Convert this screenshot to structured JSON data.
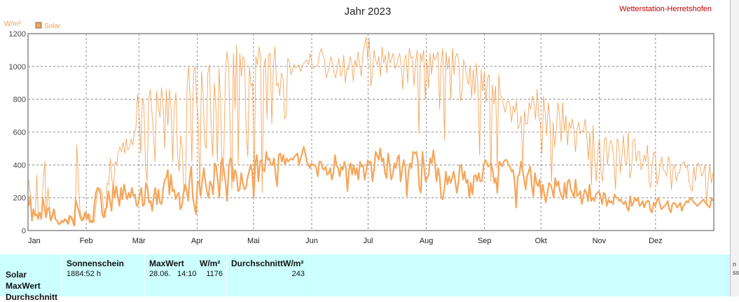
{
  "header": {
    "title": "Jahr 2023",
    "station": "Wetterstation-Herretshofen",
    "unit": "W/m²"
  },
  "legend": {
    "label": "Solar",
    "color": "#f5a65b",
    "placement": "top-left"
  },
  "chart_data": {
    "type": "line",
    "title": "Jahr 2023",
    "ylabel": "W/m²",
    "ylim": [
      0,
      1200
    ],
    "yticks": [
      0,
      200,
      400,
      600,
      800,
      1000,
      1200
    ],
    "months": [
      "Jan",
      "Feb",
      "Mär",
      "Apr",
      "Mai",
      "Jun",
      "Jul",
      "Aug",
      "Sep",
      "Okt",
      "Nov",
      "Dez"
    ],
    "grid": true,
    "series": [
      {
        "name": "Solar",
        "role": "max",
        "color": "#f5a65b",
        "values": [
          310,
          210,
          60,
          130,
          90,
          340,
          70,
          110,
          70,
          300,
          420,
          80,
          260,
          140,
          60,
          90,
          130,
          70,
          60,
          40,
          40,
          60,
          50,
          70,
          60,
          40,
          90,
          80,
          60,
          30,
          520,
          300,
          120,
          80,
          60,
          80,
          110,
          70,
          100,
          50,
          60,
          50,
          160,
          230,
          260,
          250,
          220,
          100,
          80,
          290,
          280,
          440,
          310,
          260,
          420,
          400,
          480,
          510,
          480,
          540,
          470,
          560,
          490,
          510,
          560,
          520,
          600,
          620,
          830,
          720,
          470,
          810,
          760,
          400,
          300,
          800,
          860,
          720,
          580,
          420,
          850,
          760,
          690,
          870,
          770,
          500,
          860,
          640,
          860,
          740,
          420,
          760,
          840,
          470,
          360,
          580,
          500,
          230,
          250,
          880,
          1000,
          790,
          420,
          960,
          1000,
          780,
          680,
          220,
          970,
          840,
          530,
          500,
          960,
          1010,
          660,
          450,
          900,
          760,
          420,
          990,
          760,
          300,
          480,
          960,
          1090,
          1000,
          580,
          250,
          1080,
          740,
          1130,
          400,
          1080,
          940,
          1060,
          1040,
          600,
          450,
          1000,
          880,
          900,
          320,
          1060,
          1010,
          1120,
          1060,
          230,
          990,
          1050,
          680,
          1070,
          1080,
          650,
          1000,
          1120,
          880,
          900,
          820,
          960,
          930,
          680,
          700,
          1050,
          1030,
          950,
          980,
          1010,
          990,
          1000,
          1010,
          970,
          1000,
          1020,
          1030,
          1040,
          1010,
          1080,
          1020,
          990,
          1000,
          1000,
          1020,
          1080,
          1110,
          1070,
          1040,
          930,
          960,
          1000,
          1060,
          1020,
          960,
          930,
          1000,
          1050,
          940,
          960,
          1070,
          900,
          990,
          980,
          1060,
          1020,
          910,
          1040,
          1000,
          1090,
          1010,
          940,
          1080,
          1130,
          1180,
          1050,
          1170,
          880,
          960,
          1100,
          1040,
          1010,
          1060,
          940,
          1120,
          1020,
          1070,
          960,
          1090,
          1020,
          1050,
          1080,
          990,
          1000,
          1050,
          1080,
          1000,
          860,
          1040,
          1070,
          900,
          1110,
          1050,
          1060,
          880,
          1030,
          1100,
          590,
          1080,
          1030,
          1100,
          800,
          1040,
          870,
          1080,
          950,
          1080,
          1040,
          1060,
          1090,
          740,
          1020,
          1110,
          550,
          1090,
          980,
          1060,
          800,
          1110,
          950,
          1060,
          1080,
          1030,
          790,
          850,
          1040,
          1000,
          930,
          890,
          1000,
          810,
          980,
          830,
          1020,
          870,
          460,
          980,
          850,
          970,
          780,
          930,
          950,
          300,
          890,
          770,
          880,
          380,
          950,
          820,
          810,
          760,
          720,
          780,
          790,
          770,
          660,
          760,
          720,
          790,
          620,
          640,
          700,
          380,
          730,
          650,
          650,
          780,
          740,
          820,
          770,
          680,
          860,
          700,
          650,
          470,
          820,
          720,
          580,
          780,
          670,
          300,
          660,
          510,
          620,
          780,
          700,
          540,
          780,
          600,
          700,
          520,
          660,
          620,
          680,
          610,
          480,
          620,
          660,
          590,
          610,
          600,
          680,
          580,
          430,
          600,
          280,
          640,
          430,
          300,
          500,
          560,
          350,
          300,
          550,
          570,
          400,
          500,
          550,
          520,
          430,
          250,
          560,
          540,
          350,
          450,
          580,
          420,
          400,
          600,
          320,
          370,
          550,
          560,
          420,
          480,
          480,
          370,
          400,
          460,
          420,
          520,
          300,
          260,
          400,
          480,
          450,
          280,
          320,
          400,
          450,
          370,
          360,
          330,
          450,
          420,
          250,
          380,
          400,
          300,
          350,
          350,
          400,
          410,
          420,
          380,
          400,
          300,
          260,
          240,
          390,
          300,
          400,
          410,
          380,
          330,
          360,
          400,
          150,
          300,
          400,
          290,
          350
        ]
      },
      {
        "name": "Solar",
        "role": "mean",
        "color": "#f5a65b",
        "values": [
          150,
          210,
          60,
          130,
          90,
          100,
          70,
          110,
          70,
          200,
          140,
          80,
          130,
          140,
          60,
          90,
          130,
          70,
          60,
          40,
          40,
          60,
          50,
          70,
          60,
          40,
          90,
          80,
          60,
          30,
          190,
          150,
          120,
          80,
          60,
          80,
          110,
          70,
          100,
          50,
          60,
          50,
          160,
          230,
          260,
          250,
          220,
          100,
          80,
          130,
          140,
          240,
          180,
          120,
          280,
          200,
          270,
          210,
          150,
          260,
          190,
          280,
          230,
          190,
          230,
          200,
          260,
          210,
          220,
          150,
          160,
          210,
          260,
          150,
          160,
          290,
          260,
          170,
          180,
          120,
          210,
          260,
          160,
          250,
          170,
          160,
          250,
          310,
          320,
          370,
          220,
          340,
          240,
          250,
          190,
          220,
          230,
          130,
          150,
          230,
          280,
          250,
          180,
          320,
          390,
          200,
          150,
          100,
          300,
          300,
          210,
          300,
          380,
          300,
          240,
          200,
          300,
          280,
          220,
          410,
          390,
          300,
          200,
          410,
          440,
          360,
          290,
          180,
          390,
          440,
          430,
          300,
          370,
          340,
          240,
          250,
          350,
          290,
          250,
          260,
          320,
          360,
          400,
          360,
          200,
          410,
          460,
          300,
          420,
          430,
          370,
          360,
          480,
          430,
          440,
          400,
          400,
          440,
          340,
          270,
          460,
          470,
          420,
          460,
          400,
          440,
          420,
          430,
          440,
          430,
          450,
          460,
          470,
          400,
          440,
          470,
          510,
          470,
          420,
          400,
          380,
          410,
          400,
          400,
          380,
          330,
          420,
          420,
          380,
          370,
          390,
          340,
          350,
          380,
          310,
          350,
          460,
          400,
          380,
          330,
          390,
          370,
          420,
          380,
          240,
          370,
          410,
          340,
          400,
          340,
          380,
          310,
          420,
          390,
          400,
          310,
          360,
          430,
          410,
          420,
          300,
          370,
          480,
          460,
          430,
          500,
          420,
          440,
          350,
          320,
          470,
          400,
          310,
          340,
          410,
          380,
          440,
          460,
          300,
          370,
          430,
          390,
          210,
          350,
          410,
          380,
          480,
          470,
          480,
          430,
          260,
          230,
          480,
          390,
          300,
          320,
          340,
          440,
          410,
          490,
          410,
          300,
          380,
          330,
          200,
          190,
          250,
          360,
          280,
          330,
          290,
          320,
          360,
          300,
          230,
          290,
          400,
          390,
          310,
          360,
          290,
          310,
          200,
          290,
          220,
          330,
          340,
          300,
          350,
          300,
          300,
          380,
          430,
          420,
          390,
          400,
          410,
          360,
          290,
          320,
          230,
          420,
          410,
          390,
          420,
          430,
          430,
          400,
          390,
          360,
          370,
          300,
          140,
          330,
          340,
          420,
          370,
          320,
          250,
          330,
          360,
          390,
          270,
          210,
          350,
          290,
          270,
          310,
          200,
          280,
          220,
          170,
          230,
          290,
          280,
          250,
          200,
          320,
          270,
          300,
          240,
          210,
          190,
          290,
          200,
          300,
          310,
          250,
          230,
          200,
          310,
          210,
          220,
          240,
          160,
          210,
          250,
          230,
          180,
          280,
          180,
          200,
          180,
          220,
          230,
          240,
          210,
          160,
          230,
          220,
          150,
          190,
          170,
          180,
          160,
          220,
          200,
          200,
          180,
          190,
          170,
          160,
          180,
          140,
          120,
          210,
          150,
          170,
          200,
          180,
          200,
          150,
          160,
          180,
          140,
          170,
          180,
          180,
          120,
          110,
          170,
          150,
          180,
          200,
          160,
          130,
          140,
          150,
          160,
          180,
          130,
          110,
          160,
          170,
          160,
          140,
          150,
          170,
          120,
          150,
          160,
          180,
          170,
          190,
          200,
          180,
          170,
          160,
          150,
          160,
          170,
          180,
          190,
          170,
          160,
          150,
          140,
          200,
          180
        ]
      }
    ]
  },
  "stats": {
    "row_labels": [
      "Solar",
      "MaxWert",
      "Durchschnitt"
    ],
    "sun_header": "Sonnenschein",
    "sun_value": "1884:52 h",
    "max_header": "MaxWert",
    "max_unit": "W/m²",
    "max_date": "28.06.",
    "max_time": "14:10",
    "max_value": "1176",
    "avg_header": "DurchschnittW/m²",
    "avg_value": "243"
  },
  "right_strip": {
    "frag1": "n",
    "frag2": "ss"
  }
}
